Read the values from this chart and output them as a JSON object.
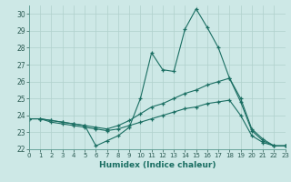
{
  "xlabel": "Humidex (Indice chaleur)",
  "xlim": [
    0,
    23
  ],
  "ylim": [
    22,
    30.5
  ],
  "yticks": [
    22,
    23,
    24,
    25,
    26,
    27,
    28,
    29,
    30
  ],
  "xticks": [
    0,
    1,
    2,
    3,
    4,
    5,
    6,
    7,
    8,
    9,
    10,
    11,
    12,
    13,
    14,
    15,
    16,
    17,
    18,
    19,
    20,
    21,
    22,
    23
  ],
  "bg_color": "#cde8e6",
  "grid_color": "#b0d0cc",
  "line_color": "#1a6e62",
  "line1_y": [
    23.8,
    23.8,
    23.7,
    23.6,
    23.5,
    23.4,
    22.2,
    22.5,
    22.8,
    23.3,
    25.0,
    27.7,
    26.7,
    26.6,
    29.1,
    30.3,
    29.2,
    28.0,
    26.2,
    24.8,
    23.1,
    22.5,
    22.2,
    22.2
  ],
  "line2_y": [
    23.8,
    23.8,
    23.7,
    23.6,
    23.5,
    23.4,
    23.3,
    23.2,
    23.4,
    23.7,
    24.1,
    24.5,
    24.7,
    25.0,
    25.3,
    25.5,
    25.8,
    26.0,
    26.2,
    25.0,
    23.2,
    22.6,
    22.2,
    22.2
  ],
  "line3_y": [
    23.8,
    23.8,
    23.6,
    23.5,
    23.4,
    23.3,
    23.2,
    23.1,
    23.2,
    23.4,
    23.6,
    23.8,
    24.0,
    24.2,
    24.4,
    24.5,
    24.7,
    24.8,
    24.9,
    24.0,
    22.8,
    22.4,
    22.2,
    22.2
  ]
}
